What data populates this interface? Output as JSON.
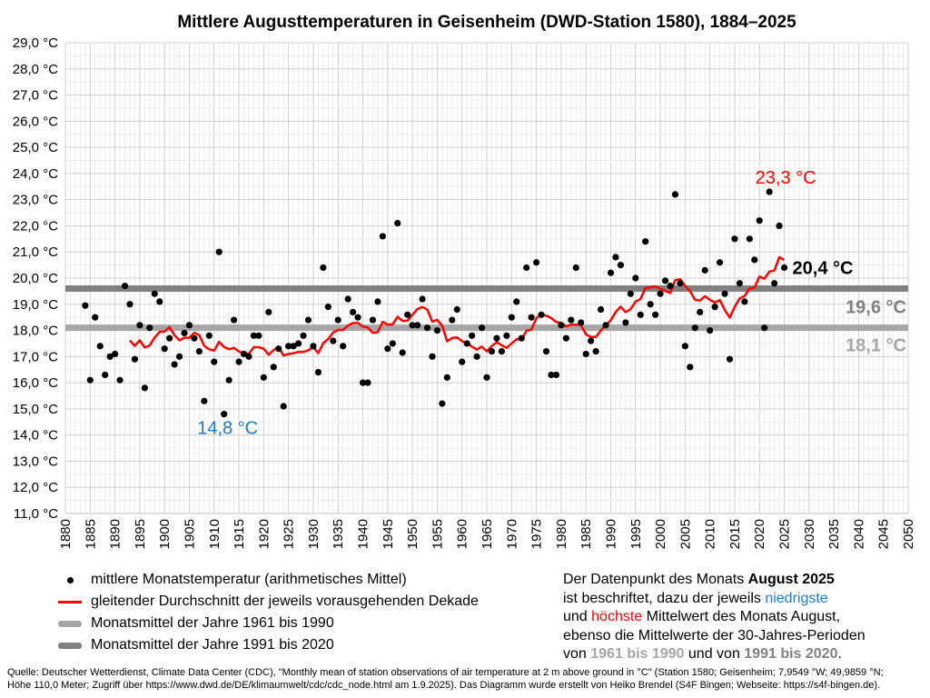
{
  "chart_data": {
    "type": "scatter",
    "title": "Mittlere Augusttemperaturen in Geisenheim (DWD-Station 1580), 1884–2025",
    "xlabel": "",
    "ylabel": "",
    "xlim": [
      1880,
      2050
    ],
    "ylim": [
      11,
      29
    ],
    "x_ticks": [
      1880,
      1885,
      1890,
      1895,
      1900,
      1905,
      1910,
      1915,
      1920,
      1925,
      1930,
      1935,
      1940,
      1945,
      1950,
      1955,
      1960,
      1965,
      1970,
      1975,
      1980,
      1985,
      1990,
      1995,
      2000,
      2005,
      2010,
      2015,
      2020,
      2025,
      2030,
      2035,
      2040,
      2045,
      2050
    ],
    "y_tick_labels": [
      "11,0 °C",
      "12,0 °C",
      "13,0 °C",
      "14,0 °C",
      "15,0 °C",
      "16,0 °C",
      "17,0 °C",
      "18,0 °C",
      "19,0 °C",
      "20,0 °C",
      "21,0 °C",
      "22,0 °C",
      "23,0 °C",
      "24,0 °C",
      "25,0 °C",
      "26,0 °C",
      "27,0 °C",
      "28,0 °C",
      "29,0 °C"
    ],
    "grid": true,
    "series": [
      {
        "name": "mittlere Monatstemperatur (arithmetisches Mittel)",
        "kind": "points",
        "color": "#000000",
        "x_start": 1884,
        "values": [
          18.95,
          16.1,
          18.5,
          17.4,
          16.3,
          17.0,
          17.1,
          16.1,
          19.7,
          19.0,
          16.9,
          18.2,
          15.8,
          18.1,
          19.4,
          19.1,
          17.3,
          17.7,
          16.7,
          17.0,
          17.9,
          18.2,
          17.7,
          17.2,
          15.3,
          17.8,
          16.8,
          21.0,
          14.8,
          16.1,
          18.4,
          16.8,
          17.1,
          17.0,
          17.8,
          17.8,
          16.2,
          18.7,
          16.6,
          17.3,
          15.1,
          17.4,
          17.4,
          17.5,
          17.8,
          18.4,
          17.4,
          16.4,
          20.4,
          18.9,
          17.6,
          18.4,
          17.4,
          19.2,
          18.7,
          18.5,
          16.0,
          16.0,
          18.4,
          19.1,
          21.6,
          17.3,
          17.5,
          22.1,
          17.15,
          18.6,
          18.2,
          18.2,
          19.2,
          18.1,
          17.0,
          18.0,
          15.2,
          16.2,
          18.4,
          18.8,
          16.8,
          17.5,
          17.8,
          17.0,
          18.1,
          16.2,
          17.2,
          17.7,
          17.2,
          17.8,
          18.5,
          19.1,
          17.7,
          20.4,
          18.5,
          20.6,
          18.6,
          17.2,
          16.3,
          16.3,
          18.2,
          17.7,
          18.4,
          20.4,
          18.3,
          17.1,
          17.6,
          17.2,
          18.8,
          18.2,
          20.2,
          20.8,
          20.5,
          18.3,
          19.4,
          20.0,
          18.6,
          21.4,
          19.0,
          18.6,
          19.4,
          19.9,
          19.7,
          23.2,
          19.8,
          17.4,
          16.6,
          18.1,
          18.7,
          20.3,
          18.0,
          18.9,
          20.6,
          19.4,
          16.9,
          21.5,
          19.8,
          19.1,
          21.5,
          20.7,
          22.2,
          18.1,
          23.3,
          19.8,
          22.0,
          20.4
        ]
      },
      {
        "name": "gleitender Durchschnitt der jeweils vorausgehenden Dekade",
        "kind": "moving-average-10",
        "color": "#ff0000"
      },
      {
        "name": "Monatsmittel der Jahre 1961 bis 1990",
        "kind": "hline",
        "value": 18.1,
        "color": "#a6a6a6"
      },
      {
        "name": "Monatsmittel der Jahre 1991 bis 2020",
        "kind": "hline",
        "value": 19.6,
        "color": "#808080"
      }
    ],
    "annotations": [
      {
        "text": "23,3 °C",
        "x": 2022,
        "y": 23.3,
        "color": "#ff0000"
      },
      {
        "text": "14,8 °C",
        "x": 1912,
        "y": 14.8,
        "color": "#1f7ac8"
      },
      {
        "text": "20,4 °C",
        "x": 2025,
        "y": 20.4,
        "color": "#000000"
      },
      {
        "text": "19,6 °C",
        "y": 19.6,
        "color": "#808080"
      },
      {
        "text": "18,1 °C",
        "y": 18.1,
        "color": "#a6a6a6"
      }
    ],
    "legend_placement": "bottom-left"
  },
  "legend": [
    "mittlere Monatstemperatur (arithmetisches Mittel)",
    "gleitender Durchschnitt der jeweils vorausgehenden Dekade",
    "Monatsmittel der Jahre 1961 bis 1990",
    "Monatsmittel der Jahre 1991 bis 2020"
  ],
  "note": {
    "l1a": "Der Datenpunkt des Monats ",
    "l1b": "August 2025",
    "l2a": "ist beschriftet, dazu der jeweils ",
    "l2b": "niedrigste",
    "l3a": "und ",
    "l3b": "höchste",
    "l3c": " Mittelwert des Monats August,",
    "l4": "ebenso die Mittelwerte der 30-Jahres-Perioden",
    "l5a": "von ",
    "l5b": "1961 bis 1990",
    "l5c": " und von ",
    "l5d": "1991 bis 2020",
    "l5e": "."
  },
  "source": {
    "line1": "Quelle: Deutscher Wetterdienst, Climate Data Center (CDC), \"Monthly mean of station observations of air temperature at 2 m above ground in °C\" (Station 1580; Geisenheim; 7,9549 °W; 49,9859 °N;",
    "line2": "Höhe 110,0 Meter; Zugriff über https://www.dwd.de/DE/klimaumwelt/cdc/cdc_node.html am 1.9.2025). Das Diagramm wurde erstellt von Heiko Brendel (S4F Bingen; Webseite: https://s4f-bingen.de)."
  }
}
